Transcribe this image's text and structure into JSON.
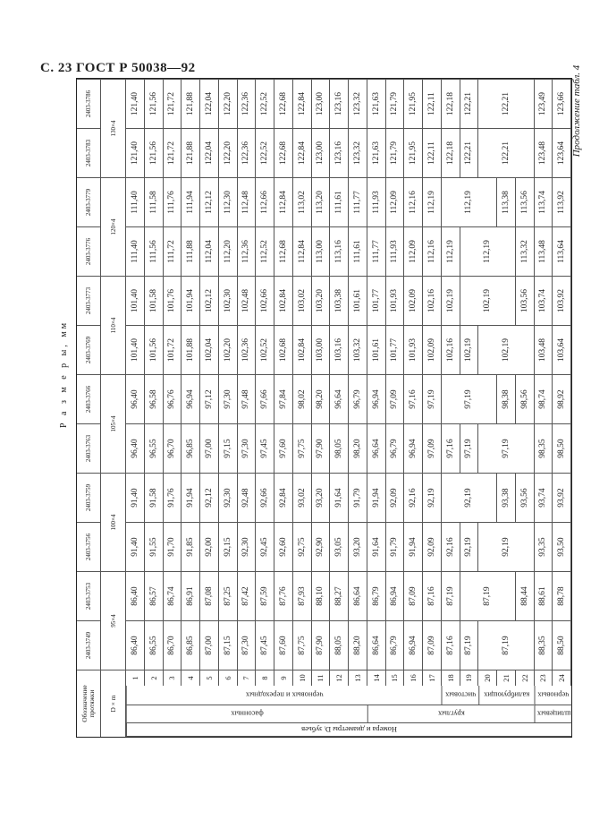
{
  "page_header": "С. 23 ГОСТ Р 50038—92",
  "continuation": "Продолжение табл. 4",
  "table": {
    "caption": "Р а з м е р ы,  мм",
    "designation_label": "Обозначение протяжки",
    "dm_label": "D × m",
    "row_group_title": "Номера и диаметры Dᵢ зубьев",
    "groups_b": [
      {
        "label": "фасонных",
        "rows": 13
      },
      {
        "label": "круглых",
        "rows": 9
      },
      {
        "label": "шлицевых",
        "rows": 2
      }
    ],
    "groups_c": [
      {
        "label": "черновых и переходных",
        "rows": 17
      },
      {
        "label": "чистовых",
        "rows": 2
      },
      {
        "label": "калибрующих",
        "rows": 3
      },
      {
        "label": "черновых",
        "rows": 2
      }
    ],
    "row_numbers": [
      "1",
      "2",
      "3",
      "4",
      "5",
      "6",
      "7",
      "8",
      "9",
      "10",
      "11",
      "12",
      "13",
      "14",
      "15",
      "16",
      "17",
      "18",
      "19",
      "20",
      "21",
      "22",
      "23",
      "24"
    ],
    "size_groups": [
      {
        "label": "95×4",
        "cols": 2
      },
      {
        "label": "100×4",
        "cols": 2
      },
      {
        "label": "105×4",
        "cols": 2
      },
      {
        "label": "110×4",
        "cols": 2
      },
      {
        "label": "120×4",
        "cols": 2
      },
      {
        "label": "130×4",
        "cols": 2
      }
    ],
    "columns": [
      {
        "code": "2403-3749",
        "cells": [
          "86,40",
          "86,55",
          "86,70",
          "86,85",
          "87,00",
          "87,15",
          "87,30",
          "87,45",
          "87,60",
          "87,75",
          "87,90",
          "88,05",
          "88,20",
          "86,64",
          "86,79",
          "86,94",
          "87,09",
          "87,16",
          "87,19",
          {
            "v": "87,19",
            "rows": 3
          },
          "88,35",
          "88,50"
        ]
      },
      {
        "code": "2403-3753",
        "cells": [
          "86,40",
          "86,57",
          "86,74",
          "86,91",
          "87,08",
          "87,25",
          "87,42",
          "87,59",
          "87,76",
          "87,93",
          "88,10",
          "88,27",
          "86,64",
          "86,79",
          "86,94",
          "87,09",
          "87,16",
          "87,19",
          {
            "v": "87,19",
            "rows": 3
          },
          "88,44",
          "88,61",
          "88,78"
        ]
      },
      {
        "code": "2403-3756",
        "cells": [
          "91,40",
          "91,55",
          "91,70",
          "91,85",
          "92,00",
          "92,15",
          "92,30",
          "92,45",
          "92,60",
          "92,75",
          "92,90",
          "93,05",
          "93,20",
          "91,64",
          "91,79",
          "91,94",
          "92,09",
          "92,16",
          "92,19",
          {
            "v": "92,19",
            "rows": 3
          },
          "93,35",
          "93,50"
        ]
      },
      {
        "code": "2403-3759",
        "cells": [
          "91,40",
          "91,58",
          "91,76",
          "91,94",
          "92,12",
          "92,30",
          "92,48",
          "92,66",
          "92,84",
          "93,02",
          "93,20",
          "91,64",
          "91,79",
          "91,94",
          "92,09",
          "92,16",
          "92,19",
          {
            "v": "92,19",
            "rows": 3
          },
          "93,38",
          "93,56",
          "93,74",
          "93,92"
        ]
      },
      {
        "code": "2403-3763",
        "cells": [
          "96,40",
          "96,55",
          "96,70",
          "96,85",
          "97,00",
          "97,15",
          "97,30",
          "97,45",
          "97,60",
          "97,75",
          "97,90",
          "98,05",
          "98,20",
          "96,64",
          "96,79",
          "96,94",
          "97,09",
          "97,16",
          "97,19",
          {
            "v": "97,19",
            "rows": 3
          },
          "98,35",
          "98,50"
        ]
      },
      {
        "code": "2403-3766",
        "cells": [
          "96,40",
          "96,58",
          "96,76",
          "96,94",
          "97,12",
          "97,30",
          "97,48",
          "97,66",
          "97,84",
          "98,02",
          "98,20",
          "96,64",
          "96,79",
          "96,94",
          "97,09",
          "97,16",
          "97,19",
          {
            "v": "97,19",
            "rows": 3
          },
          "98,38",
          "98,56",
          "98,74",
          "98,92"
        ]
      },
      {
        "code": "2403-3769",
        "cells": [
          "101,40",
          "101,56",
          "101,72",
          "101,88",
          "102,04",
          "102,20",
          "102,36",
          "102,52",
          "102,68",
          "102,84",
          "103,00",
          "103,16",
          "103,32",
          "101,61",
          "101,77",
          "101,93",
          "102,09",
          "102,16",
          "102,19",
          {
            "v": "102,19",
            "rows": 3
          },
          "103,48",
          "103,64"
        ]
      },
      {
        "code": "2403-3773",
        "cells": [
          "101,40",
          "101,58",
          "101,76",
          "101,94",
          "102,12",
          "102,30",
          "102,48",
          "102,66",
          "102,84",
          "103,02",
          "103,20",
          "103,38",
          "101,61",
          "101,77",
          "101,93",
          "102,09",
          "102,16",
          "102,19",
          {
            "v": "102,19",
            "rows": 3
          },
          "103,56",
          "103,74",
          "103,92"
        ]
      },
      {
        "code": "2403-3776",
        "cells": [
          "111,40",
          "111,56",
          "111,72",
          "111,88",
          "112,04",
          "112,20",
          "112,36",
          "112,52",
          "112,68",
          "112,84",
          "113,00",
          "113,16",
          "111,61",
          "111,77",
          "111,93",
          "112,09",
          "112,16",
          "112,19",
          {
            "v": "112,19",
            "rows": 3
          },
          "113,32",
          "113,48",
          "113,64"
        ]
      },
      {
        "code": "2403-3779",
        "cells": [
          "111,40",
          "111,58",
          "111,76",
          "111,94",
          "112,12",
          "112,30",
          "112,48",
          "112,66",
          "112,84",
          "113,02",
          "113,20",
          "111,61",
          "111,77",
          "111,93",
          "112,09",
          "112,16",
          "112,19",
          {
            "v": "112,19",
            "rows": 3
          },
          "113,38",
          "113,56",
          "113,74",
          "113,92"
        ]
      },
      {
        "code": "2403-3783",
        "cells": [
          "121,40",
          "121,56",
          "121,72",
          "121,88",
          "122,04",
          "122,20",
          "122,36",
          "122,52",
          "122,68",
          "122,84",
          "123,00",
          "123,16",
          "123,32",
          "121,63",
          "121,79",
          "121,95",
          "122,11",
          "122,18",
          "122,21",
          {
            "v": "122,21",
            "rows": 3
          },
          "123,48",
          "123,64"
        ]
      },
      {
        "code": "2403-3786",
        "cells": [
          "121,40",
          "121,56",
          "121,72",
          "121,88",
          "122,04",
          "122,20",
          "122,36",
          "122,52",
          "122,68",
          "122,84",
          "123,00",
          "123,16",
          "123,32",
          "121,63",
          "121,79",
          "121,95",
          "122,11",
          "122,18",
          "122,21",
          {
            "v": "122,21",
            "rows": 3
          },
          "123,49",
          "123,66"
        ]
      }
    ]
  }
}
